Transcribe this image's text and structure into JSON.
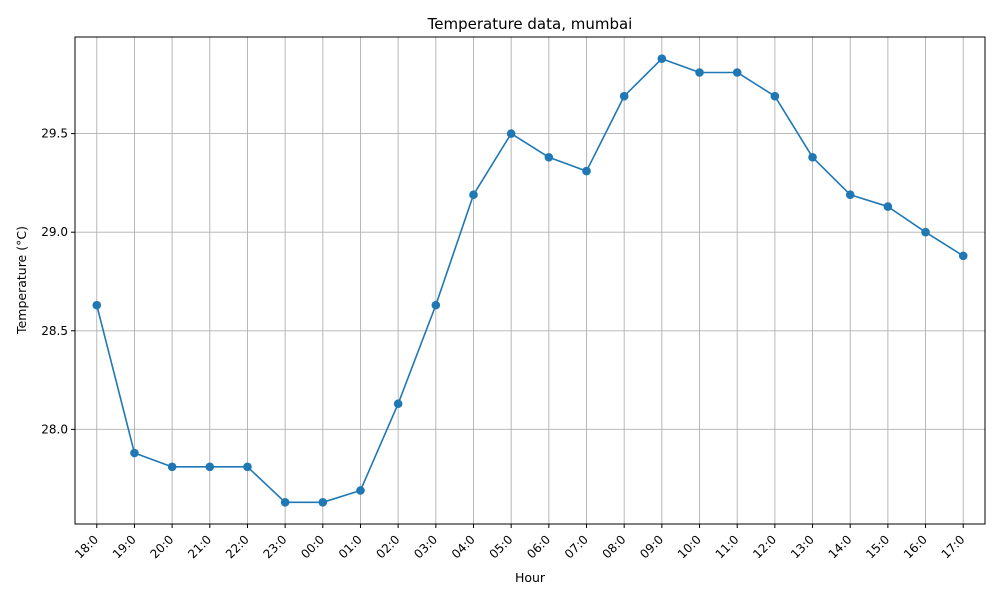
{
  "chart_data": {
    "type": "line",
    "title": "Temperature data, mumbai",
    "xlabel": "Hour",
    "ylabel": "Temperature (°C)",
    "grid": true,
    "color": "#1f77b4",
    "marker": "circle",
    "categories": [
      "18:0",
      "19:0",
      "20:0",
      "21:0",
      "22:0",
      "23:0",
      "00:0",
      "01:0",
      "02:0",
      "03:0",
      "04:0",
      "05:0",
      "06:0",
      "07:0",
      "08:0",
      "09:0",
      "10:0",
      "11:0",
      "12:0",
      "13:0",
      "14:0",
      "15:0",
      "16:0",
      "17:0"
    ],
    "values": [
      28.63,
      27.88,
      27.81,
      27.81,
      27.81,
      27.63,
      27.63,
      27.69,
      28.13,
      28.63,
      29.19,
      29.5,
      29.38,
      29.31,
      29.69,
      29.88,
      29.81,
      29.81,
      29.69,
      29.38,
      29.19,
      29.13,
      29.0,
      28.88
    ],
    "yticks": [
      "28.0",
      "28.5",
      "29.0",
      "29.5"
    ],
    "ylim": [
      27.52,
      29.99
    ]
  }
}
